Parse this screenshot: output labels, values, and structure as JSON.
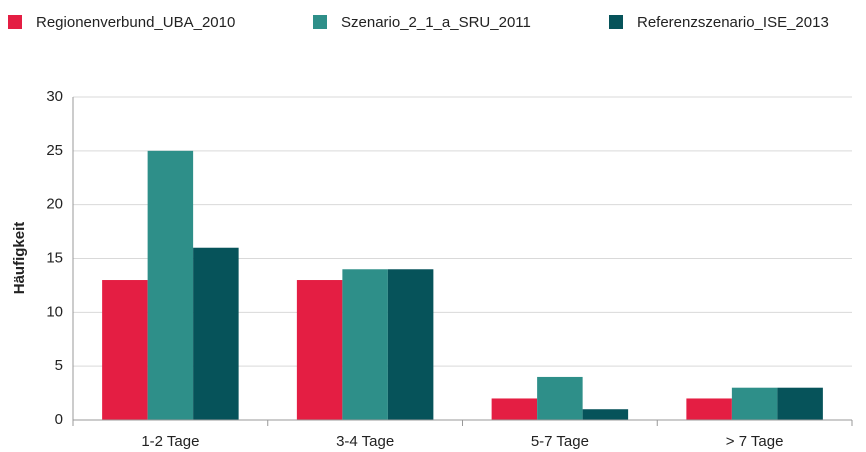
{
  "chart_data": {
    "type": "bar",
    "ylabel": "Häufigkeit",
    "categories": [
      "1-2 Tage",
      "3-4 Tage",
      "5-7 Tage",
      "> 7 Tage"
    ],
    "series": [
      {
        "name": "Regionenverbund_UBA_2010",
        "color": "#e41e43",
        "values": [
          13,
          13,
          2,
          2
        ]
      },
      {
        "name": "Szenario_2_1_a_SRU_2011",
        "color": "#2e8f89",
        "values": [
          25,
          14,
          4,
          3
        ]
      },
      {
        "name": "Referenzszenario_ISE_2013",
        "color": "#06535a",
        "values": [
          16,
          14,
          1,
          3
        ]
      }
    ],
    "ylim": [
      0,
      30
    ],
    "yticks": [
      0,
      5,
      10,
      15,
      20,
      25,
      30
    ],
    "grid": true
  }
}
